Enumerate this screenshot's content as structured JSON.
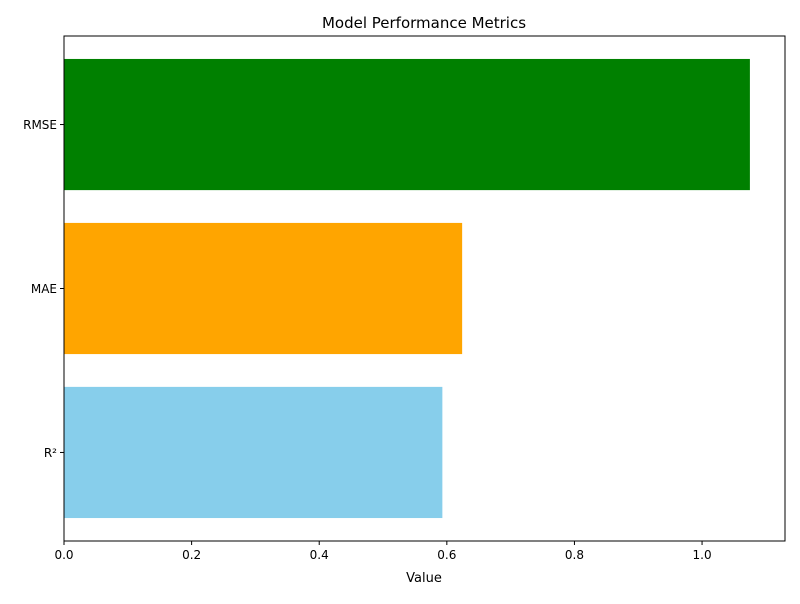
{
  "chart_data": {
    "type": "bar",
    "orientation": "horizontal",
    "title": "Model Performance Metrics",
    "xlabel": "Value",
    "ylabel": "",
    "categories": [
      "R²",
      "MAE",
      "RMSE"
    ],
    "values": [
      0.593,
      0.624,
      1.075
    ],
    "colors": [
      "#87ceeb",
      "#ffa500",
      "#008000"
    ],
    "xlim": [
      0.0,
      1.13
    ],
    "xticks": [
      0.0,
      0.2,
      0.4,
      0.6,
      0.8,
      1.0
    ],
    "xtick_labels": [
      "0.0",
      "0.2",
      "0.4",
      "0.6",
      "0.8",
      "1.0"
    ],
    "grid": false,
    "legend": "none"
  }
}
